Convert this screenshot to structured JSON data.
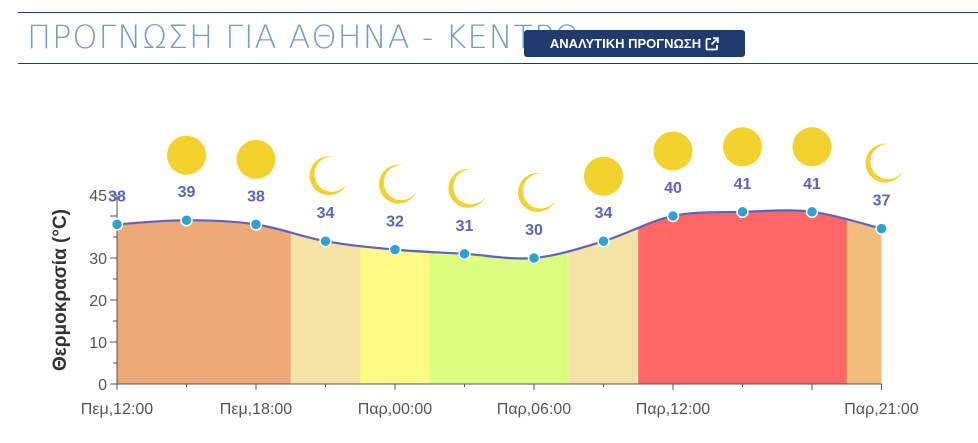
{
  "header": {
    "title": "ΠΡΟΓΝΩΣΗ ΓΙΑ ΑΘΗΝΑ - ΚΕΝΤΡΟ",
    "button_label": "ΑΝΑΛΥΤΙΚΗ ΠΡΟΓΝΩΣΗ",
    "button_icon": "external-link-icon"
  },
  "chart_data": {
    "type": "area",
    "ylabel": "Θερμοκρασία (°C)",
    "xlabel": "",
    "ylim": [
      0,
      45
    ],
    "yticks": [
      0,
      10,
      20,
      30,
      45
    ],
    "xticks": [
      "Πεμ,12:00",
      "Πεμ,18:00",
      "Παρ,00:00",
      "Παρ,06:00",
      "Παρ,12:00",
      "Παρ,21:00"
    ],
    "series": [
      {
        "values": [
          38,
          39,
          38,
          34,
          32,
          31,
          30,
          34,
          40,
          41,
          41,
          37
        ],
        "icons": [
          "none",
          "sun",
          "sun",
          "moon",
          "moon",
          "moon",
          "moon",
          "sun",
          "sun",
          "sun",
          "sun",
          "moon"
        ],
        "band_colors": [
          "#eda977",
          "#eda977",
          "#eda977",
          "#f5e2a6",
          "#fdfb83",
          "#ddfd80",
          "#ddfd80",
          "#f5e2a6",
          "#ff6666",
          "#ff6666",
          "#ff6666",
          "#f0be7a"
        ]
      }
    ],
    "colors": {
      "line": "#5b64c0",
      "point": "#2ba3d4",
      "label": "#5b64c0",
      "icon": "#f3d22e",
      "axis": "#555555"
    }
  }
}
